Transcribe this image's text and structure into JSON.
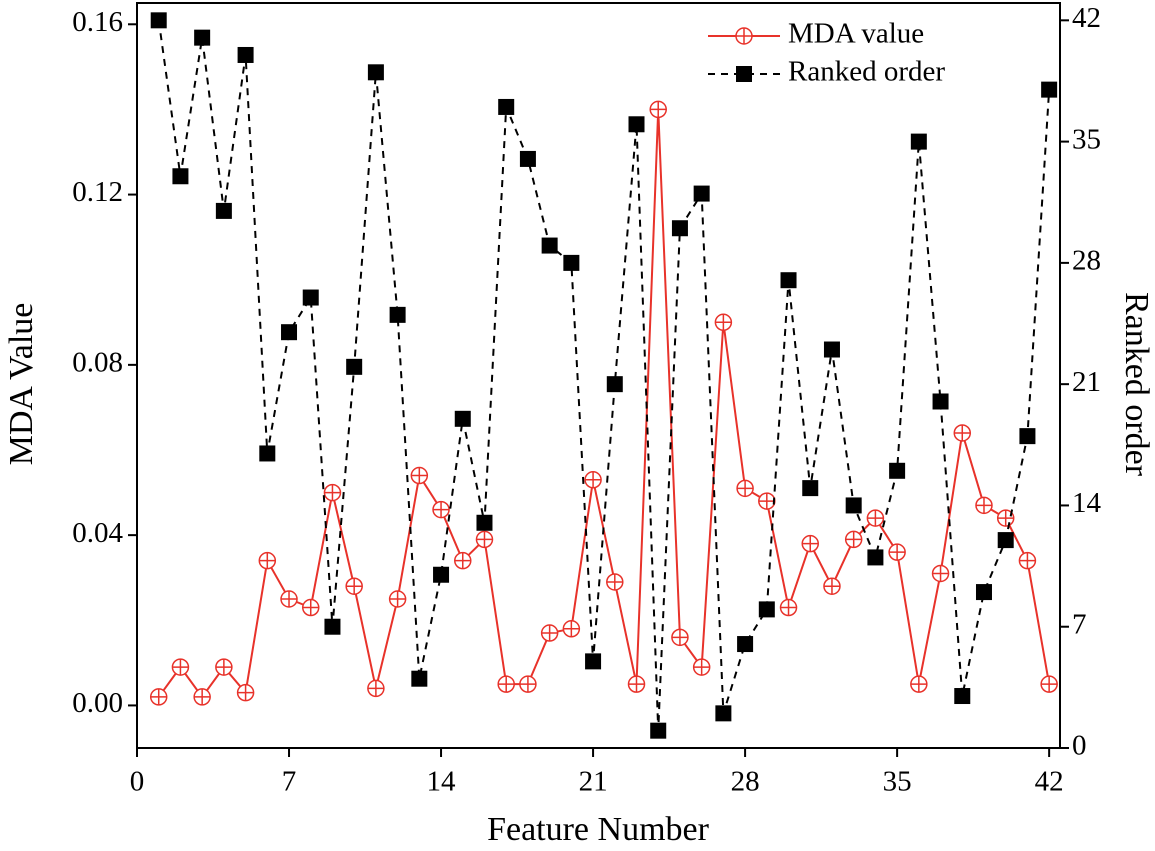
{
  "chart_data": {
    "type": "line",
    "xlabel": "Feature Number",
    "ylabel": "MDA Value",
    "y2label": "Ranked order",
    "x": [
      1,
      2,
      3,
      4,
      5,
      6,
      7,
      8,
      9,
      10,
      11,
      12,
      13,
      14,
      15,
      16,
      17,
      18,
      19,
      20,
      21,
      22,
      23,
      24,
      25,
      26,
      27,
      28,
      29,
      30,
      31,
      32,
      33,
      34,
      35,
      36,
      37,
      38,
      39,
      40,
      41,
      42
    ],
    "series": [
      {
        "name": "MDA value",
        "color": "#e8322a",
        "marker": "circle-cross",
        "dash": "solid",
        "axis": "y",
        "values": [
          0.002,
          0.009,
          0.002,
          0.009,
          0.003,
          0.034,
          0.025,
          0.023,
          0.05,
          0.028,
          0.004,
          0.025,
          0.054,
          0.046,
          0.034,
          0.039,
          0.005,
          0.005,
          0.017,
          0.018,
          0.053,
          0.029,
          0.005,
          0.14,
          0.016,
          0.009,
          0.09,
          0.051,
          0.048,
          0.023,
          0.038,
          0.028,
          0.039,
          0.044,
          0.036,
          0.005,
          0.031,
          0.064,
          0.047,
          0.044,
          0.034,
          0.005
        ]
      },
      {
        "name": "Ranked order",
        "color": "#000000",
        "marker": "square",
        "dash": "dashed",
        "axis": "y2",
        "values": [
          42,
          33,
          41,
          31,
          40,
          17,
          24,
          26,
          7,
          22,
          39,
          25,
          4,
          10,
          19,
          13,
          37,
          34,
          29,
          28,
          5,
          21,
          36,
          1,
          30,
          32,
          2,
          6,
          8,
          27,
          15,
          23,
          14,
          11,
          16,
          35,
          20,
          3,
          9,
          12,
          18,
          38
        ]
      }
    ],
    "xlim": [
      0,
      42.5
    ],
    "xticks": [
      0,
      7,
      14,
      21,
      28,
      35,
      42
    ],
    "ylim": [
      -0.01,
      0.165
    ],
    "yticks": [
      {
        "value": 0,
        "label": "0.00"
      },
      {
        "value": 0.04,
        "label": "0.04"
      },
      {
        "value": 0.08,
        "label": "0.08"
      },
      {
        "value": 0.12,
        "label": "0.12"
      },
      {
        "value": 0.16,
        "label": "0.16"
      }
    ],
    "y2lim": [
      0,
      43
    ],
    "y2ticks": [
      0,
      7,
      14,
      21,
      28,
      35,
      42
    ],
    "legend": "upper right"
  }
}
